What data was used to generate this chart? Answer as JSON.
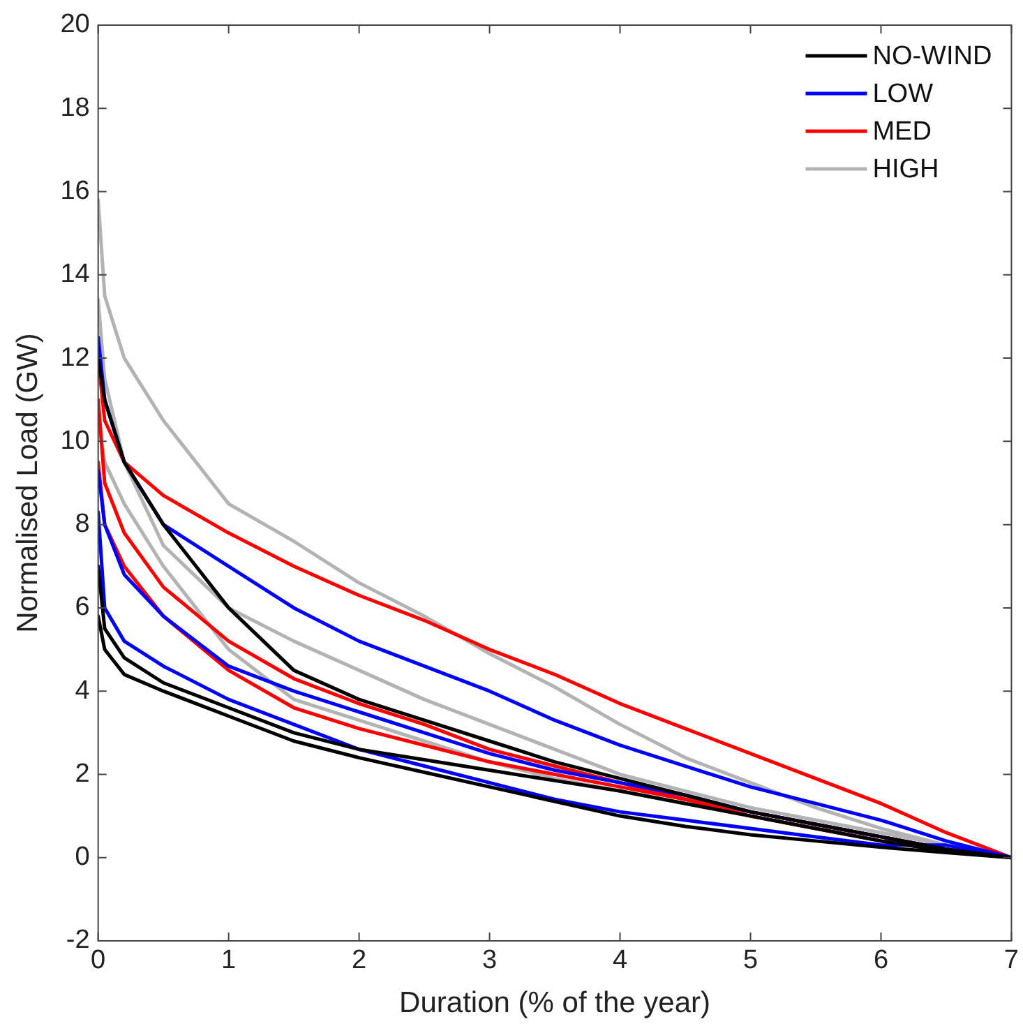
{
  "chart_data": {
    "type": "line",
    "xlabel": "Duration (% of the year)",
    "ylabel": "Normalised Load (GW)",
    "x": [
      0,
      0.05,
      0.2,
      0.5,
      1,
      1.5,
      2,
      2.5,
      3,
      3.5,
      4,
      4.5,
      5,
      5.5,
      6,
      6.5,
      7
    ],
    "xlim": [
      0,
      7
    ],
    "xticks": [
      0,
      1,
      2,
      3,
      4,
      5,
      6,
      7
    ],
    "ylim": [
      -2,
      20
    ],
    "yticks": [
      -2,
      0,
      2,
      4,
      6,
      8,
      10,
      12,
      14,
      16,
      18,
      20
    ],
    "grid": false,
    "legend": "top right",
    "marker": "none",
    "line_style": "solid",
    "series": [
      {
        "name": "NO-WIND",
        "color": "#000000",
        "values": [
          5.8,
          5.0,
          4.4,
          4.0,
          3.4,
          2.8,
          2.4,
          2.05,
          1.7,
          1.35,
          1.0,
          0.75,
          0.55,
          0.4,
          0.25,
          0.12,
          0
        ]
      },
      {
        "color": "#000000",
        "values": [
          7.0,
          5.5,
          4.8,
          4.2,
          3.6,
          3.0,
          2.6,
          2.35,
          2.1,
          1.85,
          1.6,
          1.3,
          1.0,
          0.7,
          0.4,
          0.15,
          0
        ]
      },
      {
        "color": "#000000",
        "values": [
          12.0,
          11.0,
          9.5,
          8.0,
          6.0,
          4.5,
          3.8,
          3.3,
          2.8,
          2.3,
          1.9,
          1.5,
          1.1,
          0.8,
          0.5,
          0.2,
          0
        ]
      },
      {
        "name": "LOW",
        "color": "#0000ff",
        "values": [
          8.3,
          6.0,
          5.2,
          4.6,
          3.8,
          3.2,
          2.6,
          2.2,
          1.8,
          1.4,
          1.1,
          0.9,
          0.7,
          0.5,
          0.3,
          0.3,
          0
        ]
      },
      {
        "color": "#0000ff",
        "values": [
          9.3,
          8.0,
          6.8,
          5.8,
          4.6,
          4.0,
          3.5,
          3.0,
          2.5,
          2.1,
          1.8,
          1.5,
          1.1,
          0.8,
          0.5,
          0.2,
          0
        ]
      },
      {
        "color": "#0000ff",
        "values": [
          12.5,
          11.0,
          9.5,
          8.0,
          7.0,
          6.0,
          5.2,
          4.6,
          4.0,
          3.3,
          2.7,
          2.2,
          1.7,
          1.3,
          0.9,
          0.4,
          0
        ]
      },
      {
        "name": "MED",
        "color": "#ff0000",
        "values": [
          12.0,
          10.5,
          9.5,
          8.7,
          7.8,
          7.0,
          6.3,
          5.7,
          5.0,
          4.4,
          3.7,
          3.1,
          2.5,
          1.9,
          1.3,
          0.6,
          0
        ]
      },
      {
        "color": "#ff0000",
        "values": [
          11.0,
          9.0,
          7.8,
          6.5,
          5.2,
          4.3,
          3.7,
          3.2,
          2.6,
          2.2,
          1.8,
          1.4,
          1.0,
          0.7,
          0.4,
          0.2,
          0
        ]
      },
      {
        "color": "#ff0000",
        "values": [
          9.5,
          8.0,
          7.0,
          5.8,
          4.5,
          3.6,
          3.1,
          2.7,
          2.3,
          2.0,
          1.7,
          1.4,
          1.1,
          0.8,
          0.5,
          0.2,
          0
        ]
      },
      {
        "name": "HIGH",
        "color": "#b3b3b3",
        "values": [
          15.8,
          13.5,
          12.0,
          10.5,
          8.5,
          7.6,
          6.6,
          5.8,
          4.9,
          4.1,
          3.2,
          2.4,
          1.8,
          1.2,
          0.7,
          0.3,
          0
        ]
      },
      {
        "color": "#b3b3b3",
        "values": [
          13.4,
          11.5,
          9.5,
          7.5,
          6.0,
          5.2,
          4.5,
          3.8,
          3.2,
          2.6,
          2.0,
          1.6,
          1.2,
          0.9,
          0.6,
          0.3,
          0
        ]
      },
      {
        "color": "#b3b3b3",
        "values": [
          10.5,
          9.5,
          8.5,
          7.0,
          5.0,
          3.8,
          3.3,
          2.8,
          2.3,
          1.9,
          1.6,
          1.3,
          1.0,
          0.7,
          0.5,
          0.2,
          0
        ]
      }
    ]
  }
}
